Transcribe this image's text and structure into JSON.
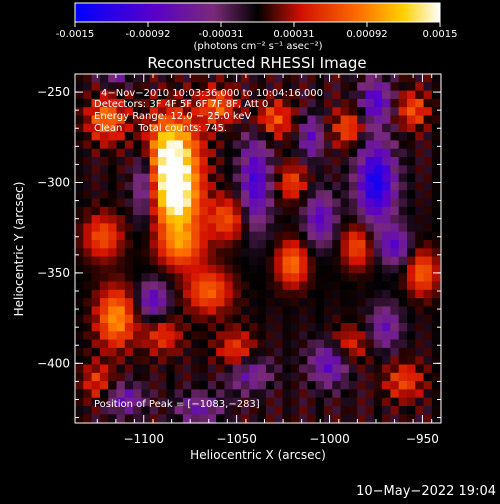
{
  "colorbar": {
    "tick_labels": [
      "-0.0015",
      "-0.00092",
      "-0.00031",
      "0.00031",
      "0.00092",
      "0.0015"
    ],
    "unit_label": "(photons cm⁻² s⁻¹ asec⁻²)",
    "range": [
      -0.0015,
      0.0015
    ]
  },
  "chart_data": {
    "type": "heatmap",
    "title": "Reconstructed RHESSI Image",
    "xlabel": "Heliocentric X (arcsec)",
    "ylabel": "Heliocentric Y (arcsec)",
    "xlim": [
      -1137,
      -940
    ],
    "ylim": [
      -433,
      -240
    ],
    "x_ticks": [
      -1100,
      -1050,
      -1000,
      -950
    ],
    "x_tick_labels": [
      "−1100",
      "−1050",
      "−1000",
      "−950"
    ],
    "y_ticks": [
      -250,
      -300,
      -350,
      -400
    ],
    "y_tick_labels": [
      "−250",
      "−300",
      "−350",
      "−400"
    ],
    "annotations": [
      "4−Nov−2010 10:03:36.000 to 10:04:16.000",
      "Detectors: 3F 4F 5F 6F 7F 8F, Att 0",
      "Energy Range: 12.0 − 25.0 keV",
      "Clean     Total counts: 745."
    ],
    "peak_label": "Position of Peak = [−1083,−283]",
    "peak": [
      -1083,
      -283
    ],
    "grid": false
  },
  "footer": {
    "timestamp": "10−May−2022 19:04"
  }
}
